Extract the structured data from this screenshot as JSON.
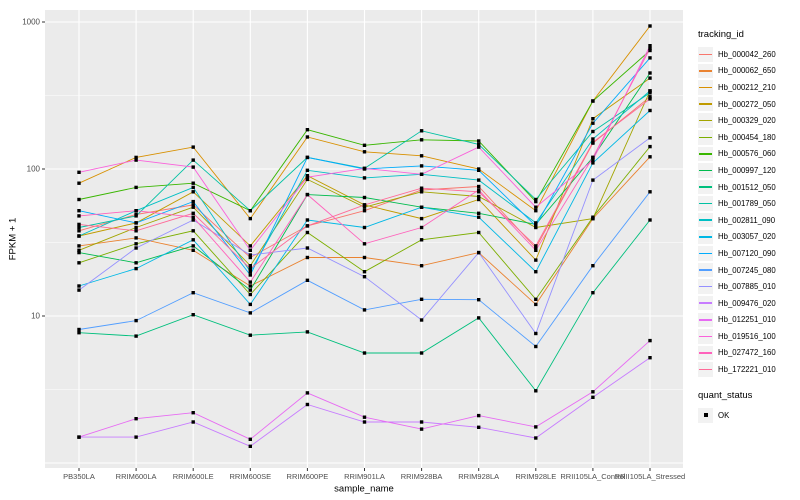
{
  "chart_data": {
    "type": "line",
    "title": "",
    "xlabel": "sample_name",
    "ylabel": "FPKM + 1",
    "y_scale": "log10",
    "ylim": [
      1,
      1200
    ],
    "yticks": [
      10,
      100,
      1000
    ],
    "grid": "on",
    "legend_position": "right",
    "panel_bg": "#EBEBEB",
    "grid_color": "#FFFFFF",
    "tick_text_color": "#4D4D4D",
    "point_color": "#000000",
    "categories": [
      "PB350LA",
      "RRIM600LA",
      "RRIM600LE",
      "RRIM600SE",
      "RRIM600PE",
      "RRIM901LA",
      "RRIM928BA",
      "RRIM928LA",
      "RRIM928LE",
      "RRII105LA_Control",
      "RRII105LA_Stressed"
    ],
    "series": [
      {
        "name": "Hb_000042_260",
        "color": "#F8766D",
        "values": [
          38,
          49,
          57,
          25,
          41,
          52,
          72,
          76,
          29,
          150,
          310
        ]
      },
      {
        "name": "Hb_000062_650",
        "color": "#EA8331",
        "values": [
          30,
          34,
          28,
          16,
          25,
          25,
          22,
          27,
          12,
          46,
          121
        ]
      },
      {
        "name": "Hb_000212_210",
        "color": "#D89000",
        "values": [
          80,
          120,
          141,
          46,
          165,
          131,
          123,
          100,
          52,
          290,
          940
        ]
      },
      {
        "name": "Hb_000272_050",
        "color": "#C09B00",
        "values": [
          35,
          43,
          70,
          30,
          90,
          57,
          46,
          62,
          24,
          220,
          415
        ]
      },
      {
        "name": "Hb_000329_020",
        "color": "#A3A500",
        "values": [
          28,
          40,
          55,
          22,
          85,
          55,
          70,
          65,
          40,
          46,
          340
        ]
      },
      {
        "name": "Hb_000454_180",
        "color": "#7CAE00",
        "values": [
          23,
          31,
          38,
          14,
          37,
          20,
          33,
          37,
          13,
          47,
          142
        ]
      },
      {
        "name": "Hb_000576_060",
        "color": "#39B600",
        "values": [
          62,
          75,
          80,
          52,
          185,
          145,
          158,
          155,
          60,
          290,
          640
        ]
      },
      {
        "name": "Hb_000997_120",
        "color": "#00BB4E",
        "values": [
          27,
          23,
          30,
          15,
          67,
          64,
          55,
          50,
          42,
          120,
          450
        ]
      },
      {
        "name": "Hb_001512_050",
        "color": "#00BF7D",
        "values": [
          7.7,
          7.3,
          10.2,
          7.4,
          7.8,
          5.6,
          5.6,
          9.7,
          3.1,
          14.4,
          45
        ]
      },
      {
        "name": "Hb_001789_050",
        "color": "#00C1A3",
        "values": [
          40,
          48,
          115,
          52,
          120,
          101,
          182,
          147,
          62,
          180,
          330
        ]
      },
      {
        "name": "Hb_002811_090",
        "color": "#00BFC4",
        "values": [
          35,
          52,
          75,
          20,
          98,
          87,
          92,
          84,
          43,
          160,
          340
        ]
      },
      {
        "name": "Hb_003057_020",
        "color": "#00B8E5",
        "values": [
          16,
          21,
          33,
          12,
          45,
          40,
          55,
          47,
          20,
          110,
          250
        ]
      },
      {
        "name": "Hb_007120_090",
        "color": "#00ACFC",
        "values": [
          52,
          43,
          60,
          19,
          120,
          100,
          105,
          98,
          41,
          205,
          570
        ]
      },
      {
        "name": "Hb_007245_080",
        "color": "#529EFF",
        "values": [
          8.1,
          9.3,
          14.4,
          10.5,
          17.5,
          11,
          13,
          12.9,
          6.2,
          22,
          70
        ]
      },
      {
        "name": "Hb_007885_010",
        "color": "#9590FF",
        "values": [
          15,
          29,
          45,
          26,
          29,
          18.5,
          9.4,
          27,
          7.6,
          84,
          163
        ]
      },
      {
        "name": "Hb_009476_020",
        "color": "#C77CFF",
        "values": [
          1.5,
          1.5,
          1.9,
          1.3,
          2.5,
          1.9,
          1.9,
          1.75,
          1.48,
          2.8,
          5.2
        ]
      },
      {
        "name": "Hb_012251_010",
        "color": "#E76BF3",
        "values": [
          1.5,
          2.0,
          2.2,
          1.45,
          3.0,
          2.05,
          1.7,
          2.1,
          1.76,
          3.05,
          6.8
        ]
      },
      {
        "name": "Hb_019516_100",
        "color": "#FA62DB",
        "values": [
          95,
          115,
          103,
          28,
          88,
          101,
          92,
          141,
          55,
          115,
          690
        ]
      },
      {
        "name": "Hb_027472_160",
        "color": "#FF62BC",
        "values": [
          48,
          52,
          47,
          17,
          67,
          31,
          40,
          72,
          28,
          120,
          660
        ]
      },
      {
        "name": "Hb_172221_010",
        "color": "#FF6A98",
        "values": [
          42,
          38,
          50,
          21,
          41,
          57,
          74,
          70,
          30,
          152,
          300
        ]
      }
    ]
  },
  "legend": {
    "tracking_title": "tracking_id",
    "quant_title": "quant_status",
    "quant_items": [
      {
        "label": "OK"
      }
    ]
  }
}
